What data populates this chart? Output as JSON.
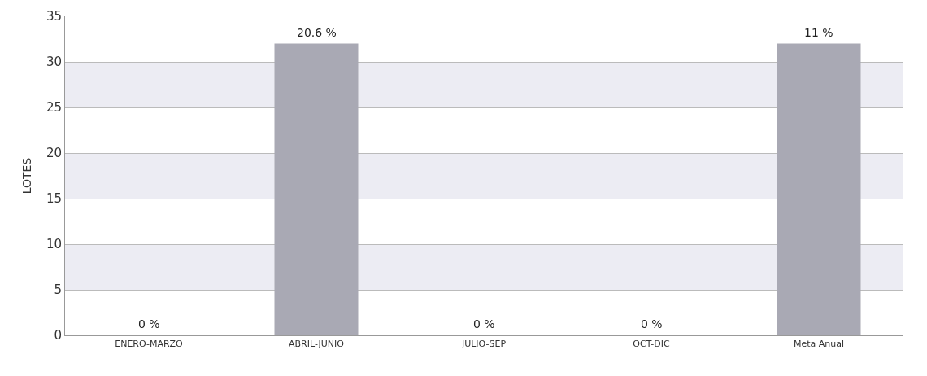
{
  "chart_data": {
    "type": "bar",
    "ylabel": "LOTES",
    "categories": [
      "ENERO-MARZO",
      "ABRIL-JUNIO",
      "JULIO-SEP",
      "OCT-DIC",
      "Meta Anual"
    ],
    "values": [
      0,
      32,
      0,
      0,
      32
    ],
    "annotations": [
      {
        "text": "0 %",
        "x": "ENERO-MARZO",
        "y": 0
      },
      {
        "text": "20.6 %",
        "x": "ABRIL-JUNIO",
        "y": 32
      },
      {
        "text": "0 %",
        "x": "JULIO-SEP",
        "y": 0
      },
      {
        "text": "0 %",
        "x": "OCT-DIC",
        "y": 0
      },
      {
        "text": "11 %",
        "x": "Meta Anual",
        "y": 32
      }
    ],
    "color": "#a9a9b4",
    "ylim": [
      0,
      35
    ],
    "yticks": [
      0,
      5,
      10,
      15,
      20,
      25,
      30,
      35
    ],
    "grid": "y",
    "bands": [
      {
        "axis": "y",
        "from": 5,
        "to": 10,
        "color": "#ececf3"
      },
      {
        "axis": "y",
        "from": 15,
        "to": 20,
        "color": "#ececf3"
      },
      {
        "axis": "y",
        "from": 25,
        "to": 30,
        "color": "#ececf3"
      }
    ]
  }
}
